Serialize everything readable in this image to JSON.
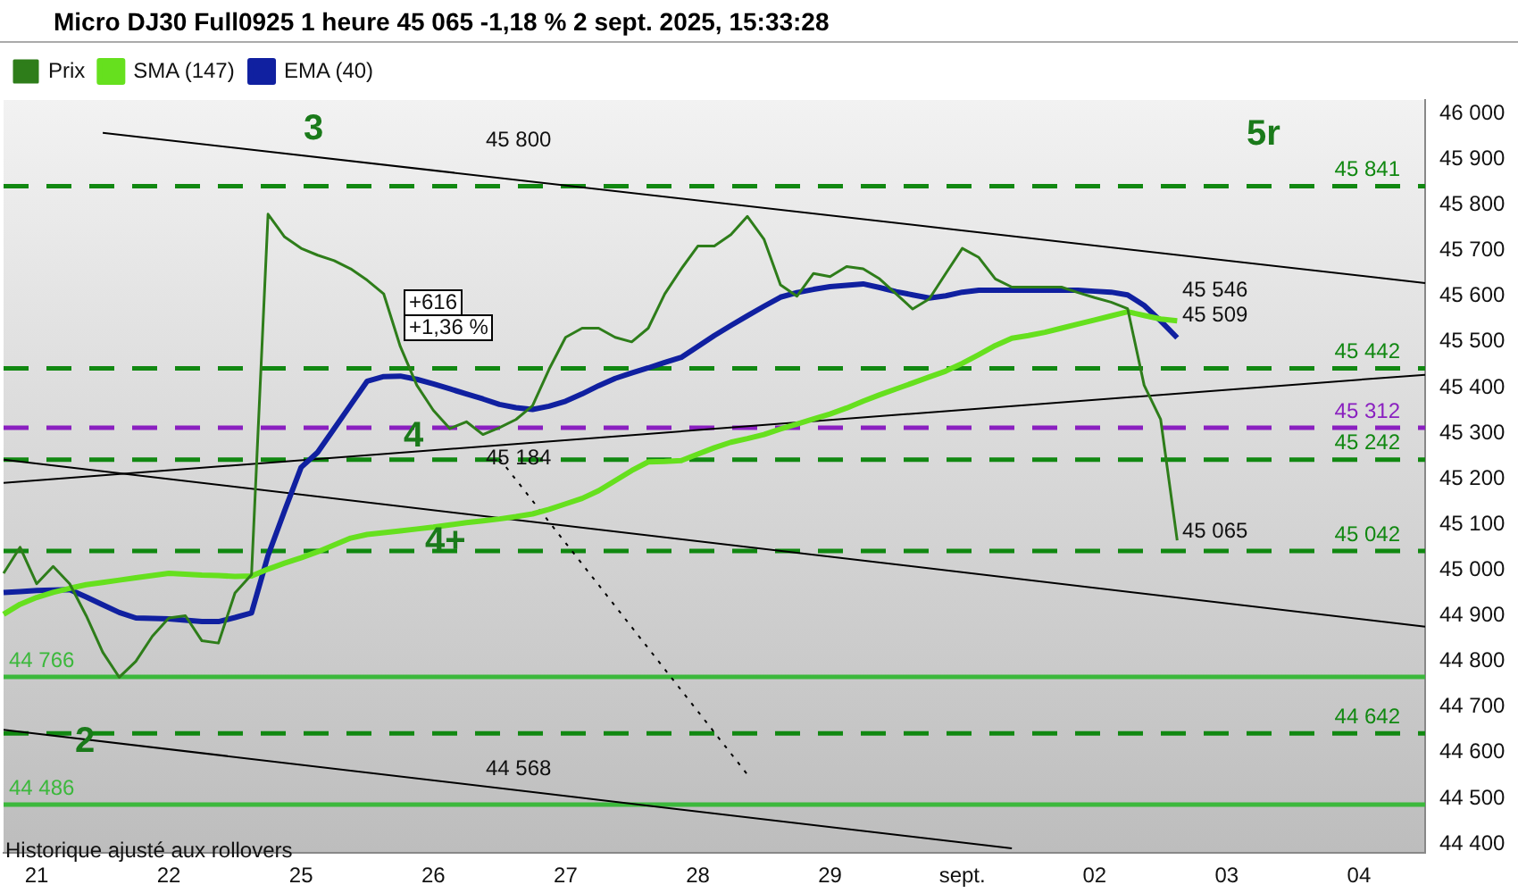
{
  "chart_data": {
    "type": "line",
    "title": "Micro DJ30 Full0925 1 heure 45 065 -1,18 % 2 sept. 2025, 15:33:28",
    "legend": "top left",
    "grid": false,
    "marker": "none",
    "categories": [
      null,
      null,
      "21",
      null,
      null,
      null,
      null,
      null,
      null,
      null,
      "22",
      null,
      null,
      null,
      null,
      null,
      null,
      null,
      "25",
      null,
      null,
      null,
      null,
      null,
      null,
      null,
      "26",
      null,
      null,
      null,
      null,
      null,
      null,
      null,
      "27",
      null,
      null,
      null,
      null,
      null,
      null,
      null,
      "28",
      null,
      null,
      null,
      null,
      null,
      null,
      null,
      "29",
      null,
      null,
      null,
      null,
      null,
      null,
      null,
      "sept.",
      null,
      null,
      null,
      null,
      null,
      null,
      null,
      "02",
      null,
      null,
      null,
      null,
      null,
      null,
      null,
      "03",
      null,
      null,
      null,
      null,
      null,
      null,
      null,
      "04",
      null,
      null,
      null,
      null
    ],
    "ylim": [
      44380,
      46030
    ],
    "yticks": [
      {
        "value": 44400,
        "label": "44 400"
      },
      {
        "value": 44500,
        "label": "44 500"
      },
      {
        "value": 44600,
        "label": "44 600"
      },
      {
        "value": 44700,
        "label": "44 700"
      },
      {
        "value": 44800,
        "label": "44 800"
      },
      {
        "value": 44900,
        "label": "44 900"
      },
      {
        "value": 45000,
        "label": "45 000"
      },
      {
        "value": 45100,
        "label": "45 100"
      },
      {
        "value": 45200,
        "label": "45 200"
      },
      {
        "value": 45300,
        "label": "45 300"
      },
      {
        "value": 45400,
        "label": "45 400"
      },
      {
        "value": 45500,
        "label": "45 500"
      },
      {
        "value": 45600,
        "label": "45 600"
      },
      {
        "value": 45700,
        "label": "45 700"
      },
      {
        "value": 45800,
        "label": "45 800"
      },
      {
        "value": 45900,
        "label": "45 900"
      },
      {
        "value": 46000,
        "label": "46 000"
      }
    ],
    "series": [
      {
        "name": "Prix",
        "color": "#2e7d1a",
        "values": [
          44993,
          45050,
          44970,
          45008,
          44970,
          44900,
          44820,
          44765,
          44800,
          44855,
          44895,
          44900,
          44845,
          44840,
          44950,
          44990,
          45780,
          45730,
          45705,
          45690,
          45678,
          45660,
          45635,
          45605,
          45490,
          45405,
          45350,
          45310,
          45325,
          45297,
          45312,
          45330,
          45360,
          45440,
          45510,
          45530,
          45530,
          45510,
          45500,
          45530,
          45605,
          45660,
          45710,
          45710,
          45735,
          45775,
          45725,
          45625,
          45600,
          45650,
          45643,
          45665,
          45660,
          45638,
          45605,
          45572,
          45594,
          45650,
          45705,
          45685,
          45638,
          45620,
          45620,
          45620,
          45620,
          45608,
          45597,
          45587,
          45573,
          45405,
          45330,
          45065,
          null,
          null,
          null,
          null,
          null,
          null,
          null,
          null,
          null,
          null,
          null,
          null,
          null,
          null,
          null
        ]
      },
      {
        "name": "SMA (147)",
        "color": "#66e01e",
        "values": [
          44903,
          44925,
          44940,
          44951,
          44960,
          44968,
          44973,
          44978,
          44983,
          44988,
          44993,
          44991,
          44989,
          44988,
          44986,
          44987,
          45002,
          45015,
          45027,
          45040,
          45055,
          45070,
          45078,
          45082,
          45086,
          45090,
          45094,
          45099,
          45104,
          45108,
          45112,
          45117,
          45123,
          45133,
          45145,
          45157,
          45174,
          45196,
          45218,
          45237,
          45238,
          45240,
          45254,
          45268,
          45280,
          45288,
          45297,
          45309,
          45320,
          45331,
          45342,
          45355,
          45370,
          45384,
          45397,
          45410,
          45423,
          45436,
          45453,
          45472,
          45492,
          45508,
          45514,
          45521,
          45530,
          45539,
          45548,
          45557,
          45566,
          45558,
          45550,
          45546,
          null,
          null,
          null,
          null,
          null,
          null,
          null,
          null,
          null,
          null,
          null,
          null,
          null,
          null,
          null
        ]
      },
      {
        "name": "EMA (40)",
        "color": "#1020a0",
        "values": [
          44951,
          44953,
          44955,
          44956,
          44957,
          44941,
          44924,
          44907,
          44895,
          44894,
          44893,
          44890,
          44887,
          44887,
          44896,
          44906,
          45032,
          45130,
          45225,
          45258,
          45310,
          45362,
          45414,
          45424,
          45425,
          45418,
          45408,
          45397,
          45386,
          45375,
          45363,
          45356,
          45352,
          45359,
          45370,
          45386,
          45404,
          45420,
          45432,
          45443,
          45455,
          45466,
          45490,
          45514,
          45536,
          45557,
          45578,
          45598,
          45608,
          45615,
          45621,
          45624,
          45627,
          45619,
          45610,
          45603,
          45596,
          45601,
          45609,
          45613,
          45613,
          45613,
          45613,
          45613,
          45613,
          45613,
          45611,
          45609,
          45603,
          45580,
          45546,
          45509,
          null,
          null,
          null,
          null,
          null,
          null,
          null,
          null,
          null,
          null,
          null,
          null,
          null,
          null,
          null
        ]
      },
      {
        "color": "#000000",
        "values": [
          null,
          null,
          null,
          null,
          null,
          null,
          45958,
          null,
          null,
          null,
          null,
          null,
          null,
          null,
          null,
          null,
          null,
          null,
          null,
          null,
          null,
          null,
          null,
          null,
          null,
          null,
          null,
          null,
          null,
          null,
          null,
          null,
          null,
          null,
          null,
          null,
          null,
          null,
          null,
          null,
          null,
          null,
          null,
          null,
          null,
          null,
          null,
          null,
          null,
          null,
          null,
          null,
          null,
          null,
          null,
          null,
          null,
          null,
          null,
          null,
          null,
          null,
          null,
          null,
          null,
          null,
          null,
          null,
          null,
          null,
          null,
          null,
          null,
          null,
          null,
          null,
          null,
          null,
          null,
          null,
          null,
          null,
          null,
          null,
          null,
          null,
          45629
        ]
      },
      {
        "color": "#000000",
        "values": [
          45191,
          null,
          null,
          null,
          null,
          null,
          null,
          null,
          null,
          null,
          null,
          null,
          null,
          null,
          null,
          null,
          null,
          null,
          null,
          null,
          null,
          null,
          null,
          null,
          null,
          null,
          null,
          null,
          null,
          null,
          null,
          null,
          null,
          null,
          null,
          null,
          null,
          null,
          null,
          null,
          null,
          null,
          null,
          null,
          null,
          null,
          null,
          null,
          null,
          null,
          null,
          null,
          null,
          null,
          null,
          null,
          null,
          null,
          null,
          null,
          null,
          null,
          null,
          null,
          null,
          null,
          null,
          null,
          null,
          null,
          null,
          null,
          null,
          null,
          null,
          null,
          null,
          null,
          null,
          null,
          null,
          null,
          null,
          null,
          null,
          null,
          45428
        ]
      },
      {
        "color": "#000000",
        "values": [
          45242,
          null,
          null,
          null,
          null,
          null,
          null,
          null,
          null,
          null,
          null,
          null,
          null,
          null,
          null,
          null,
          null,
          null,
          null,
          null,
          null,
          null,
          null,
          null,
          null,
          null,
          null,
          null,
          null,
          null,
          null,
          null,
          null,
          null,
          null,
          null,
          null,
          null,
          null,
          null,
          null,
          null,
          null,
          null,
          null,
          null,
          null,
          null,
          null,
          null,
          null,
          null,
          null,
          null,
          null,
          null,
          null,
          null,
          null,
          null,
          null,
          null,
          null,
          null,
          null,
          null,
          null,
          null,
          null,
          null,
          null,
          null,
          null,
          null,
          null,
          null,
          null,
          null,
          null,
          null,
          null,
          null,
          null,
          null,
          null,
          null,
          44876
        ]
      },
      {
        "color": "#000000",
        "values": [
          44650,
          null,
          null,
          null,
          null,
          null,
          null,
          null,
          null,
          null,
          null,
          null,
          null,
          null,
          null,
          null,
          null,
          null,
          null,
          null,
          null,
          null,
          null,
          null,
          null,
          null,
          null,
          null,
          null,
          null,
          null,
          null,
          null,
          null,
          null,
          null,
          null,
          null,
          null,
          null,
          null,
          null,
          null,
          null,
          null,
          null,
          null,
          null,
          null,
          null,
          null,
          null,
          null,
          null,
          null,
          null,
          null,
          null,
          null,
          null,
          null,
          44390,
          null,
          null,
          null,
          null,
          null,
          null,
          null,
          null,
          null,
          null,
          null,
          null,
          null,
          null,
          null,
          null,
          null,
          null,
          null,
          null,
          null,
          null,
          null,
          null,
          null
        ]
      },
      {
        "color": "#000000",
        "line_style": "dotted",
        "values": [
          null,
          null,
          null,
          null,
          null,
          null,
          null,
          null,
          null,
          null,
          null,
          null,
          null,
          null,
          null,
          null,
          null,
          null,
          null,
          null,
          null,
          null,
          null,
          null,
          null,
          null,
          null,
          null,
          null,
          null,
          45244,
          null,
          null,
          null,
          null,
          null,
          null,
          null,
          null,
          null,
          null,
          null,
          null,
          null,
          null,
          44552,
          null,
          null,
          null,
          null,
          null,
          null,
          null,
          null,
          null,
          null,
          null,
          null,
          null,
          null,
          null,
          null,
          null,
          null,
          null,
          null,
          null,
          null,
          null,
          null,
          null,
          null,
          null,
          null,
          null,
          null,
          null,
          null,
          null,
          null,
          null,
          null,
          null,
          null,
          null,
          null,
          null
        ]
      }
    ],
    "ref_lines": [
      {
        "axis": "y",
        "value": 45841,
        "label": "45 841",
        "color": "#118811",
        "line_style": "dashed"
      },
      {
        "axis": "y",
        "value": 45442,
        "label": "45 442",
        "color": "#118811",
        "line_style": "dashed"
      },
      {
        "axis": "y",
        "value": 45242,
        "label": "45 242",
        "color": "#118811",
        "line_style": "dashed"
      },
      {
        "axis": "y",
        "value": 45042,
        "label": "45 042",
        "color": "#118811",
        "line_style": "dashed"
      },
      {
        "axis": "y",
        "value": 44642,
        "label": "44 642",
        "color": "#118811",
        "line_style": "dashed"
      },
      {
        "axis": "y",
        "value": 45312,
        "label": "45 312",
        "color": "#8a1fc0",
        "line_style": "dashed"
      },
      {
        "axis": "y",
        "value": 44766,
        "label": "44 766",
        "color": "#3cb83c",
        "line_style": "solid"
      },
      {
        "axis": "y",
        "value": 44486,
        "label": "44 486",
        "color": "#3cb83c",
        "line_style": "solid"
      }
    ],
    "annotations": [
      "3",
      "5r",
      "4",
      "4+",
      "2",
      "+616",
      "+1,36 %",
      "45 800",
      "45 184",
      "44 568",
      "45 546",
      "45 509",
      "45 065",
      "Historique ajusté aux rollovers"
    ]
  }
}
